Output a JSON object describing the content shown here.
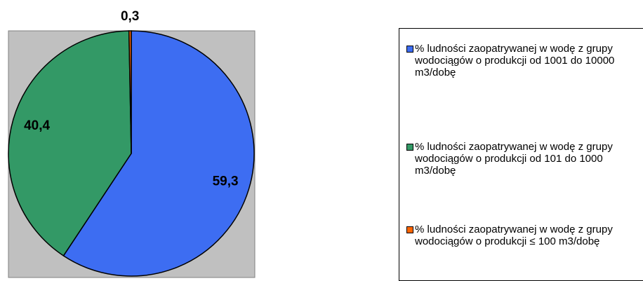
{
  "chart_data": {
    "type": "pie",
    "categories": [
      "% ludności zaopatrywanej w wodę z grupy wodociągów o produkcji od 1001 do 10000 m3/dobę",
      "% ludności zaopatrywanej w wodę z grupy wodociągów o produkcji od 101 do 1000 m3/dobę",
      "% ludności zaopatrywanej w wodę z grupy wodociągów o produkcji ≤ 100 m3/dobę"
    ],
    "values": [
      59.3,
      40.4,
      0.3
    ],
    "value_labels": [
      "59,3",
      "40,4",
      "0,3"
    ],
    "colors": [
      "#3d6df2",
      "#339966",
      "#ff6600"
    ]
  }
}
